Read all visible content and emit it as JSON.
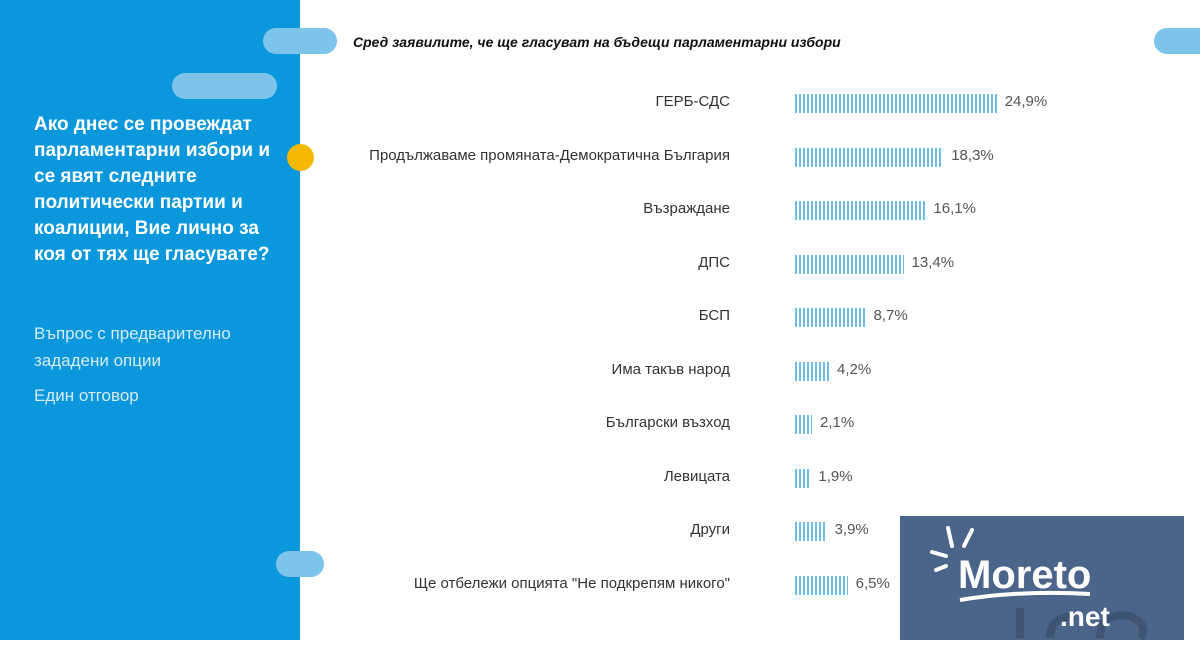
{
  "question": "Ако днес се провеждат парламентарни избори и се явят следните политически партии и коалиции, Вие лично за коя от тях ще гласувате?",
  "question_type": "Въпрос с предварително зададени опции",
  "answer_type": "Един отговор",
  "logo_text": "Moreto.net trend",
  "colors": {
    "panel": "#0a97dc",
    "bar": "#6fbde0",
    "accent": "#f5b800"
  },
  "chart_data": {
    "type": "bar",
    "orientation": "horizontal",
    "title": "Сред заявилите, че ще гласуват на бъдещи парламентарни избори",
    "categories": [
      "ГЕРБ-СДС",
      "Продължаваме промяната-Демократична България",
      "Възраждане",
      "ДПС",
      "БСП",
      "Има такъв народ",
      "Български възход",
      "Левицата",
      "Други",
      "Ще отбележи опцията  \"Не подкрепям никого\""
    ],
    "values": [
      24.9,
      18.3,
      16.1,
      13.4,
      8.7,
      4.2,
      2.1,
      1.9,
      3.9,
      6.5
    ],
    "labels": [
      "24,9%",
      "18,3%",
      "16,1%",
      "13,4%",
      "8,7%",
      "4,2%",
      "2,1%",
      "1,9%",
      "3,9%",
      "6,5%"
    ],
    "unit": "%"
  }
}
